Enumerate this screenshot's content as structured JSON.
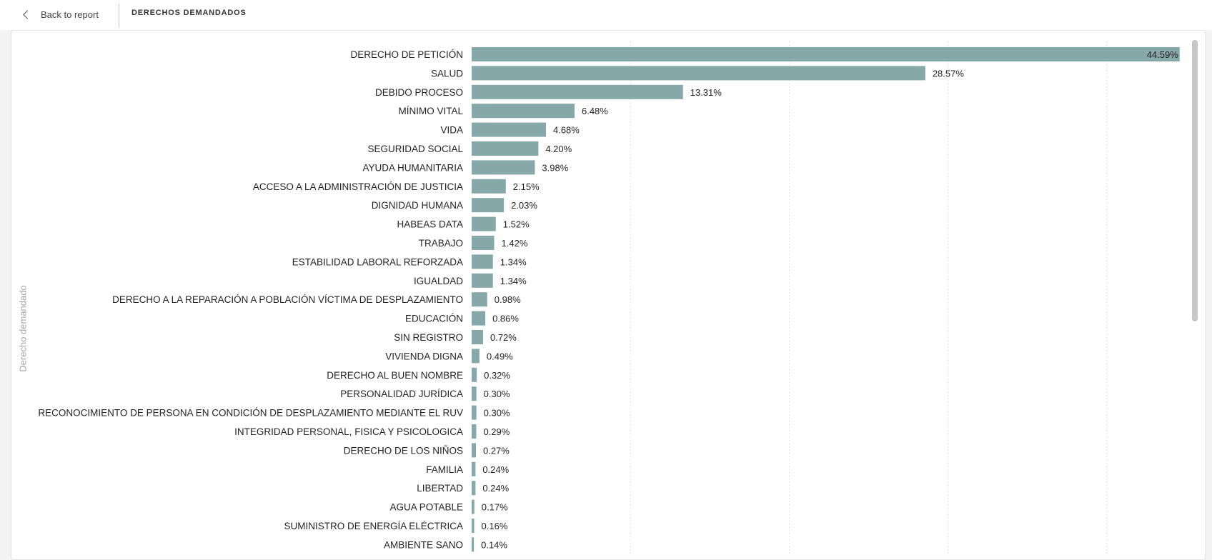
{
  "header": {
    "back_label": "Back to report",
    "title": "DERECHOS DEMANDADOS"
  },
  "colors": {
    "bar": "#87a8a9",
    "grid": "#d6d6d6"
  },
  "chart_data": {
    "type": "bar",
    "orientation": "horizontal",
    "ylabel": "Derecho demandado",
    "xlabel": "",
    "xlim": [
      0,
      45
    ],
    "grid": "vertical dotted",
    "value_format": "percent",
    "categories": [
      "DERECHO DE PETICIÓN",
      "SALUD",
      "DEBIDO PROCESO",
      "MÍNIMO VITAL",
      "VIDA",
      "SEGURIDAD SOCIAL",
      "AYUDA HUMANITARIA",
      "ACCESO A LA ADMINISTRACIÓN DE JUSTICIA",
      "DIGNIDAD HUMANA",
      "HABEAS DATA",
      "TRABAJO",
      "ESTABILIDAD LABORAL REFORZADA",
      "IGUALDAD",
      "DERECHO A LA REPARACIÓN A POBLACIÓN VÍCTIMA DE DESPLAZAMIENTO",
      "EDUCACIÓN",
      "SIN REGISTRO",
      "VIVIENDA DIGNA",
      "DERECHO AL BUEN NOMBRE",
      "PERSONALIDAD JURÍDICA",
      "RECONOCIMIENTO DE PERSONA EN CONDICIÓN DE DESPLAZAMIENTO MEDIANTE EL RUV",
      "INTEGRIDAD PERSONAL, FISICA Y PSICOLOGICA",
      "DERECHO DE LOS NIÑOS",
      "FAMILIA",
      "LIBERTAD",
      "AGUA POTABLE",
      "SUMINISTRO DE ENERGÍA ELÉCTRICA",
      "AMBIENTE SANO"
    ],
    "values": [
      44.59,
      28.57,
      13.31,
      6.48,
      4.68,
      4.2,
      3.98,
      2.15,
      2.03,
      1.52,
      1.42,
      1.34,
      1.34,
      0.98,
      0.86,
      0.72,
      0.49,
      0.32,
      0.3,
      0.3,
      0.29,
      0.27,
      0.24,
      0.24,
      0.17,
      0.16,
      0.14
    ],
    "value_labels": [
      "44.59%",
      "28.57%",
      "13.31%",
      "6.48%",
      "4.68%",
      "4.20%",
      "3.98%",
      "2.15%",
      "2.03%",
      "1.52%",
      "1.42%",
      "1.34%",
      "1.34%",
      "0.98%",
      "0.86%",
      "0.72%",
      "0.49%",
      "0.32%",
      "0.30%",
      "0.30%",
      "0.29%",
      "0.27%",
      "0.24%",
      "0.24%",
      "0.17%",
      "0.16%",
      "0.14%"
    ]
  }
}
